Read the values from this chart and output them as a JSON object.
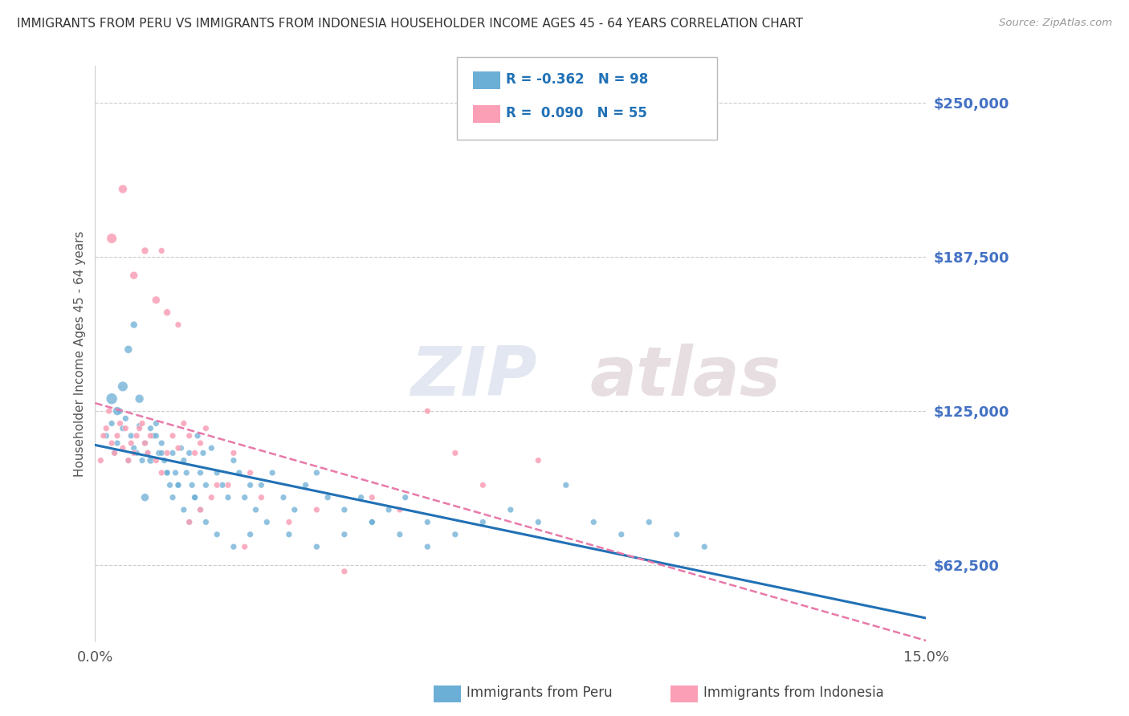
{
  "title": "IMMIGRANTS FROM PERU VS IMMIGRANTS FROM INDONESIA HOUSEHOLDER INCOME AGES 45 - 64 YEARS CORRELATION CHART",
  "source": "Source: ZipAtlas.com",
  "ylabel": "Householder Income Ages 45 - 64 years",
  "ytick_labels": [
    "$62,500",
    "$125,000",
    "$187,500",
    "$250,000"
  ],
  "ytick_values": [
    62500,
    125000,
    187500,
    250000
  ],
  "xmin": 0.0,
  "xmax": 15.0,
  "ymin": 31250,
  "ymax": 265000,
  "blue_R": "-0.362",
  "blue_N": "98",
  "pink_R": "0.090",
  "pink_N": "55",
  "blue_color": "#6baed6",
  "pink_color": "#fa9fb5",
  "blue_line_color": "#2171b5",
  "pink_line_color": "#e87aaa",
  "watermark_zip": "ZIP",
  "watermark_atlas": "atlas",
  "legend_label_blue": "Immigrants from Peru",
  "legend_label_pink": "Immigrants from Indonesia",
  "blue_scatter_x": [
    0.2,
    0.3,
    0.35,
    0.4,
    0.45,
    0.5,
    0.55,
    0.6,
    0.65,
    0.7,
    0.75,
    0.8,
    0.85,
    0.9,
    0.95,
    1.0,
    1.05,
    1.1,
    1.15,
    1.2,
    1.25,
    1.3,
    1.35,
    1.4,
    1.45,
    1.5,
    1.55,
    1.6,
    1.65,
    1.7,
    1.75,
    1.8,
    1.85,
    1.9,
    1.95,
    2.0,
    2.1,
    2.2,
    2.3,
    2.4,
    2.5,
    2.6,
    2.7,
    2.8,
    2.9,
    3.0,
    3.2,
    3.4,
    3.6,
    3.8,
    4.0,
    4.2,
    4.5,
    4.8,
    5.0,
    5.3,
    5.6,
    6.0,
    6.5,
    7.0,
    7.5,
    8.0,
    8.5,
    9.0,
    9.5,
    10.0,
    10.5,
    11.0,
    0.3,
    0.4,
    0.5,
    0.6,
    0.7,
    0.8,
    0.9,
    1.0,
    1.1,
    1.2,
    1.3,
    1.4,
    1.5,
    1.6,
    1.7,
    1.8,
    1.9,
    2.0,
    2.2,
    2.5,
    2.8,
    3.1,
    3.5,
    4.0,
    4.5,
    5.0,
    5.5,
    6.0
  ],
  "blue_scatter_y": [
    115000,
    120000,
    108000,
    112000,
    125000,
    118000,
    122000,
    105000,
    115000,
    110000,
    108000,
    119000,
    105000,
    112000,
    108000,
    118000,
    115000,
    120000,
    108000,
    112000,
    105000,
    100000,
    95000,
    108000,
    100000,
    95000,
    110000,
    105000,
    100000,
    108000,
    95000,
    90000,
    115000,
    100000,
    108000,
    95000,
    110000,
    100000,
    95000,
    90000,
    105000,
    100000,
    90000,
    95000,
    85000,
    95000,
    100000,
    90000,
    85000,
    95000,
    100000,
    90000,
    85000,
    90000,
    80000,
    85000,
    90000,
    80000,
    75000,
    80000,
    85000,
    80000,
    95000,
    80000,
    75000,
    80000,
    75000,
    70000,
    130000,
    125000,
    135000,
    150000,
    160000,
    130000,
    90000,
    105000,
    115000,
    108000,
    100000,
    90000,
    95000,
    85000,
    80000,
    90000,
    85000,
    80000,
    75000,
    70000,
    75000,
    80000,
    75000,
    70000,
    75000,
    80000,
    75000,
    70000,
    65000,
    68000
  ],
  "blue_scatter_sizes": [
    30,
    30,
    30,
    30,
    30,
    30,
    30,
    30,
    30,
    30,
    30,
    30,
    30,
    30,
    30,
    30,
    30,
    30,
    30,
    30,
    30,
    30,
    30,
    30,
    30,
    30,
    30,
    30,
    30,
    30,
    30,
    30,
    30,
    30,
    30,
    30,
    30,
    30,
    30,
    30,
    30,
    30,
    30,
    30,
    30,
    30,
    30,
    30,
    30,
    30,
    30,
    30,
    30,
    30,
    30,
    30,
    30,
    30,
    30,
    30,
    30,
    30,
    30,
    30,
    30,
    30,
    30,
    30,
    100,
    60,
    80,
    50,
    40,
    60,
    50,
    40,
    30,
    30,
    30,
    30,
    30,
    30,
    30,
    30,
    30,
    30,
    30,
    30,
    30,
    30,
    30,
    30,
    30,
    30,
    30,
    30,
    30,
    30
  ],
  "pink_scatter_x": [
    0.1,
    0.15,
    0.2,
    0.25,
    0.3,
    0.35,
    0.4,
    0.45,
    0.5,
    0.55,
    0.6,
    0.65,
    0.7,
    0.75,
    0.8,
    0.85,
    0.9,
    0.95,
    1.0,
    1.1,
    1.2,
    1.3,
    1.4,
    1.5,
    1.6,
    1.7,
    1.8,
    1.9,
    2.0,
    2.2,
    2.5,
    2.8,
    3.0,
    3.5,
    4.0,
    4.5,
    5.0,
    5.5,
    6.0,
    6.5,
    7.0,
    8.0,
    1.2,
    0.3,
    0.5,
    0.7,
    0.9,
    1.1,
    1.3,
    1.5,
    1.7,
    1.9,
    2.1,
    2.4,
    2.7
  ],
  "pink_scatter_y": [
    105000,
    115000,
    118000,
    125000,
    112000,
    108000,
    115000,
    120000,
    110000,
    118000,
    105000,
    112000,
    108000,
    115000,
    118000,
    120000,
    112000,
    108000,
    115000,
    105000,
    100000,
    108000,
    115000,
    110000,
    120000,
    115000,
    108000,
    112000,
    118000,
    95000,
    108000,
    100000,
    90000,
    80000,
    85000,
    60000,
    90000,
    85000,
    125000,
    108000,
    95000,
    105000,
    190000,
    195000,
    215000,
    180000,
    190000,
    170000,
    165000,
    160000,
    80000,
    85000,
    90000,
    95000,
    70000
  ],
  "pink_scatter_sizes": [
    30,
    30,
    30,
    30,
    30,
    30,
    30,
    30,
    30,
    30,
    30,
    30,
    30,
    30,
    30,
    30,
    30,
    30,
    30,
    30,
    30,
    30,
    30,
    30,
    30,
    30,
    30,
    30,
    30,
    30,
    30,
    30,
    30,
    30,
    30,
    30,
    30,
    30,
    30,
    30,
    30,
    30,
    30,
    80,
    60,
    50,
    40,
    50,
    40,
    30,
    30,
    30,
    30,
    30,
    30
  ]
}
